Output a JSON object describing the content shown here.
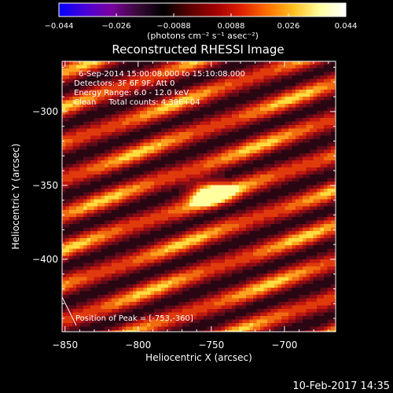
{
  "colorbar": {
    "ticks": [
      "-0.044",
      "-0.026",
      "-0.0088",
      "0.0088",
      "0.026",
      "0.044"
    ],
    "unit_label": "(photons cm⁻² s⁻¹ asec⁻²)",
    "colors": [
      "#0000ff",
      "#4a00d8",
      "#7a00a0",
      "#3a0a3a",
      "#000000",
      "#5a0000",
      "#a00000",
      "#e02000",
      "#ff7000",
      "#ffc020",
      "#ffffa0",
      "#ffffff"
    ]
  },
  "chart_data": {
    "type": "heatmap",
    "title": "Reconstructed RHESSI Image",
    "xlabel": "Heliocentric X (arcsec)",
    "ylabel": "Heliocentric Y (arcsec)",
    "xlim": [
      -852,
      -665
    ],
    "ylim": [
      -449,
      -266
    ],
    "x_ticks": [
      -850,
      -800,
      -750,
      -700
    ],
    "x_tick_labels": [
      "−850",
      "−800",
      "−750",
      "−700"
    ],
    "y_ticks": [
      -300,
      -350,
      -400
    ],
    "y_tick_labels": [
      "−300",
      "−350",
      "−400"
    ],
    "annotations": [
      "6-Sep-2014 15:00:08.000 to 15:10:08.000",
      "Detectors: 3F 6F 9F, Att 0",
      "Energy Range: 6.0 - 12.0 keV",
      "Clean     Total counts: 4.30E+04"
    ],
    "peak_label": "Position of Peak = [-753,-360]",
    "peak": [
      -753,
      -360
    ]
  },
  "footer": {
    "date": "10-Feb-2017 14:35"
  }
}
